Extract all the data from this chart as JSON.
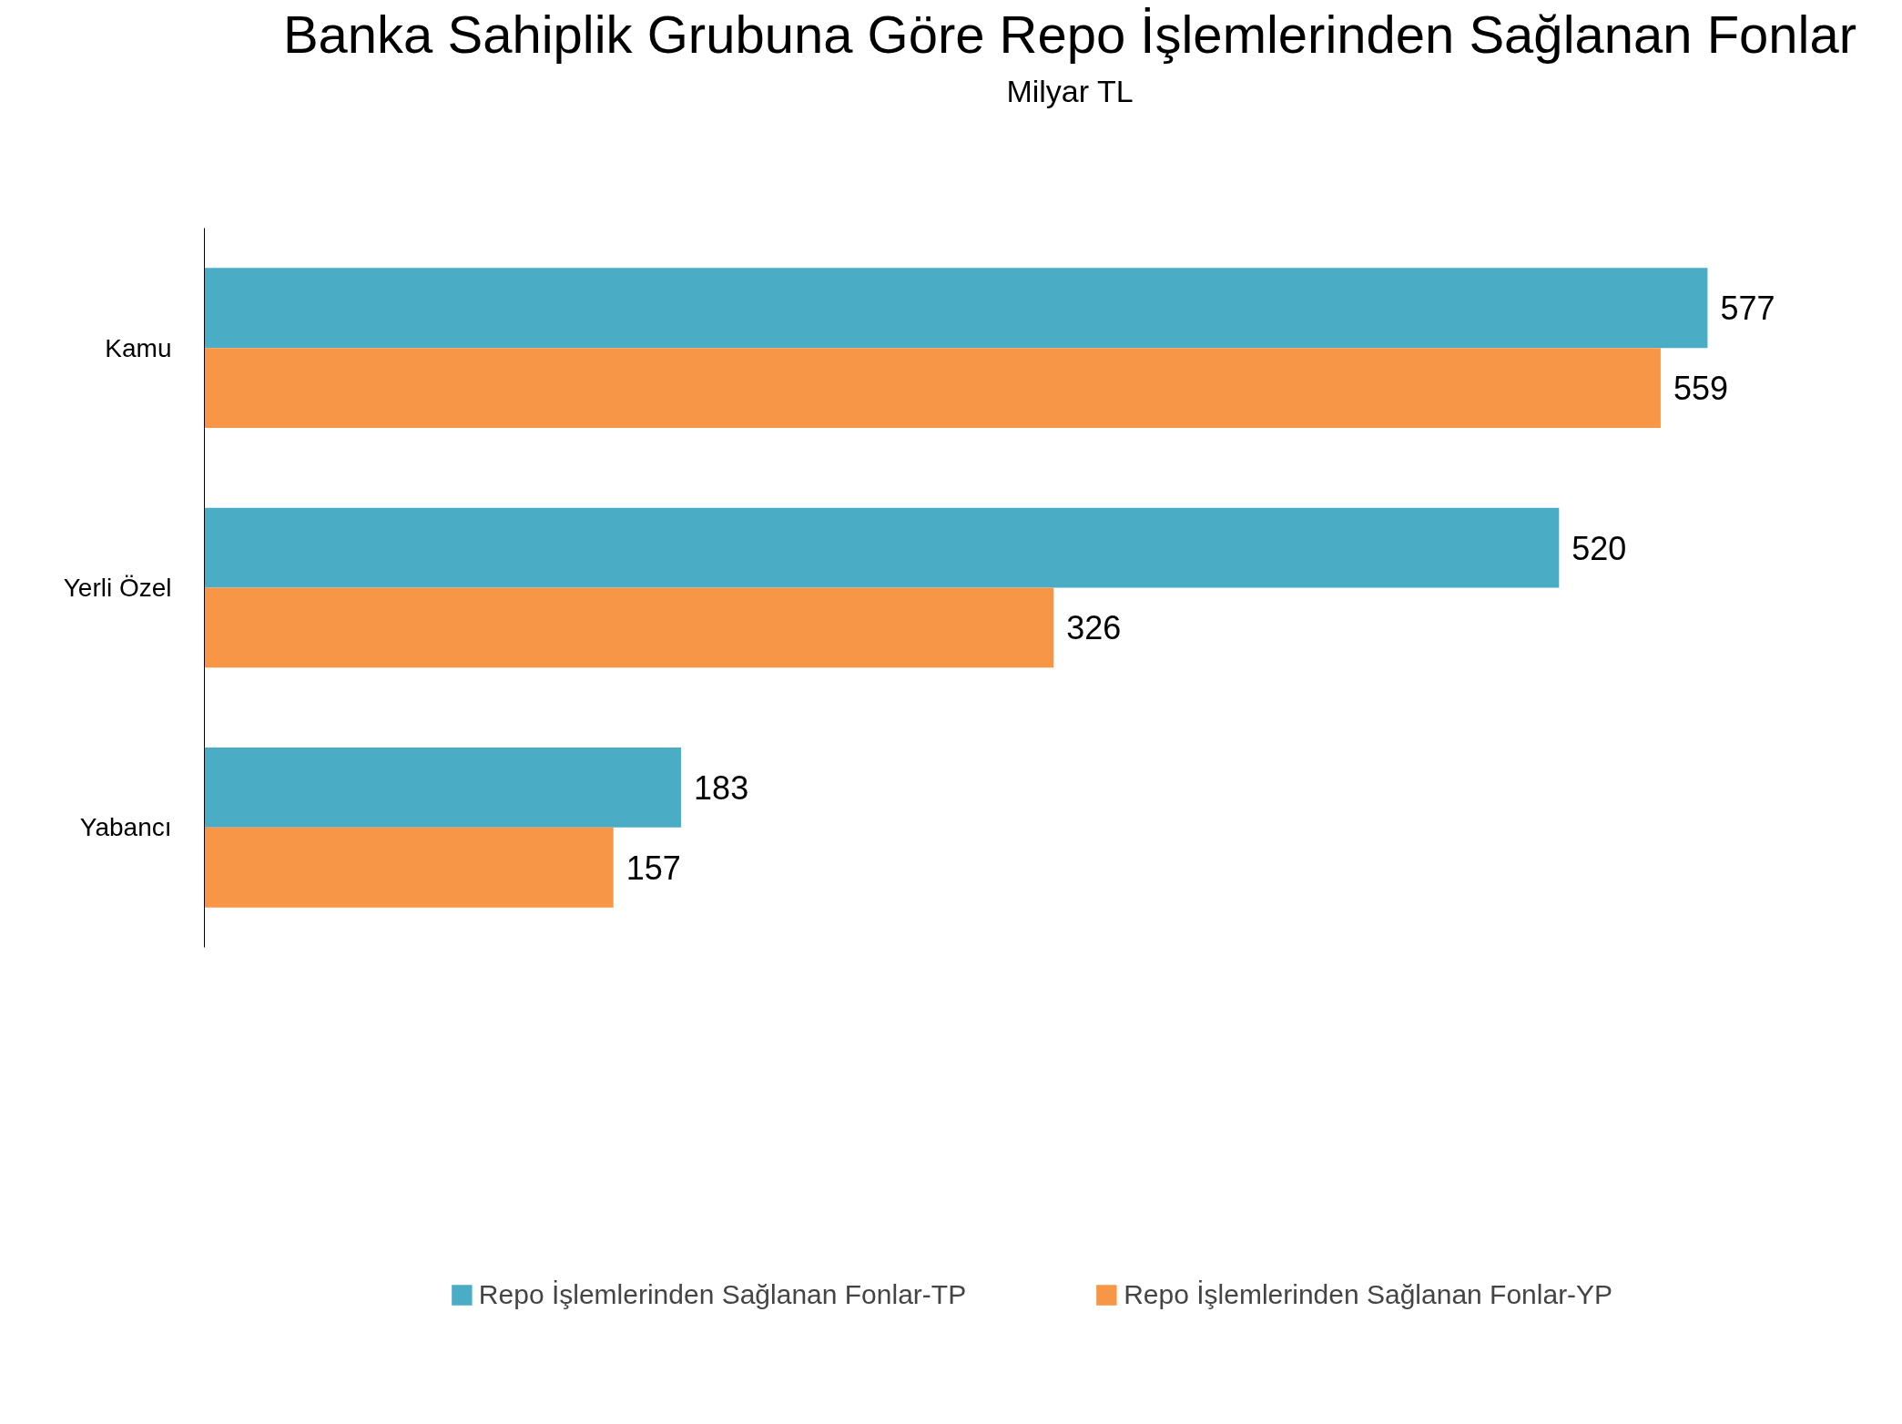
{
  "chart_data": {
    "type": "bar",
    "orientation": "horizontal",
    "title": "Banka Sahiplik Grubuna Göre Repo İşlemlerinden Sağlanan Fonlar",
    "subtitle": "Milyar TL",
    "categories": [
      "Kamu",
      "Yerli Özel",
      "Yabancı"
    ],
    "series": [
      {
        "name": "Repo İşlemlerinden Sağlanan Fonlar-TP",
        "color": "#4bacc6",
        "values": [
          577,
          520,
          183
        ]
      },
      {
        "name": "Repo İşlemlerinden Sağlanan Fonlar-YP",
        "color": "#f79646",
        "values": [
          559,
          326,
          157
        ]
      }
    ],
    "data_labels": true,
    "grid": false,
    "legend": "bottom"
  }
}
